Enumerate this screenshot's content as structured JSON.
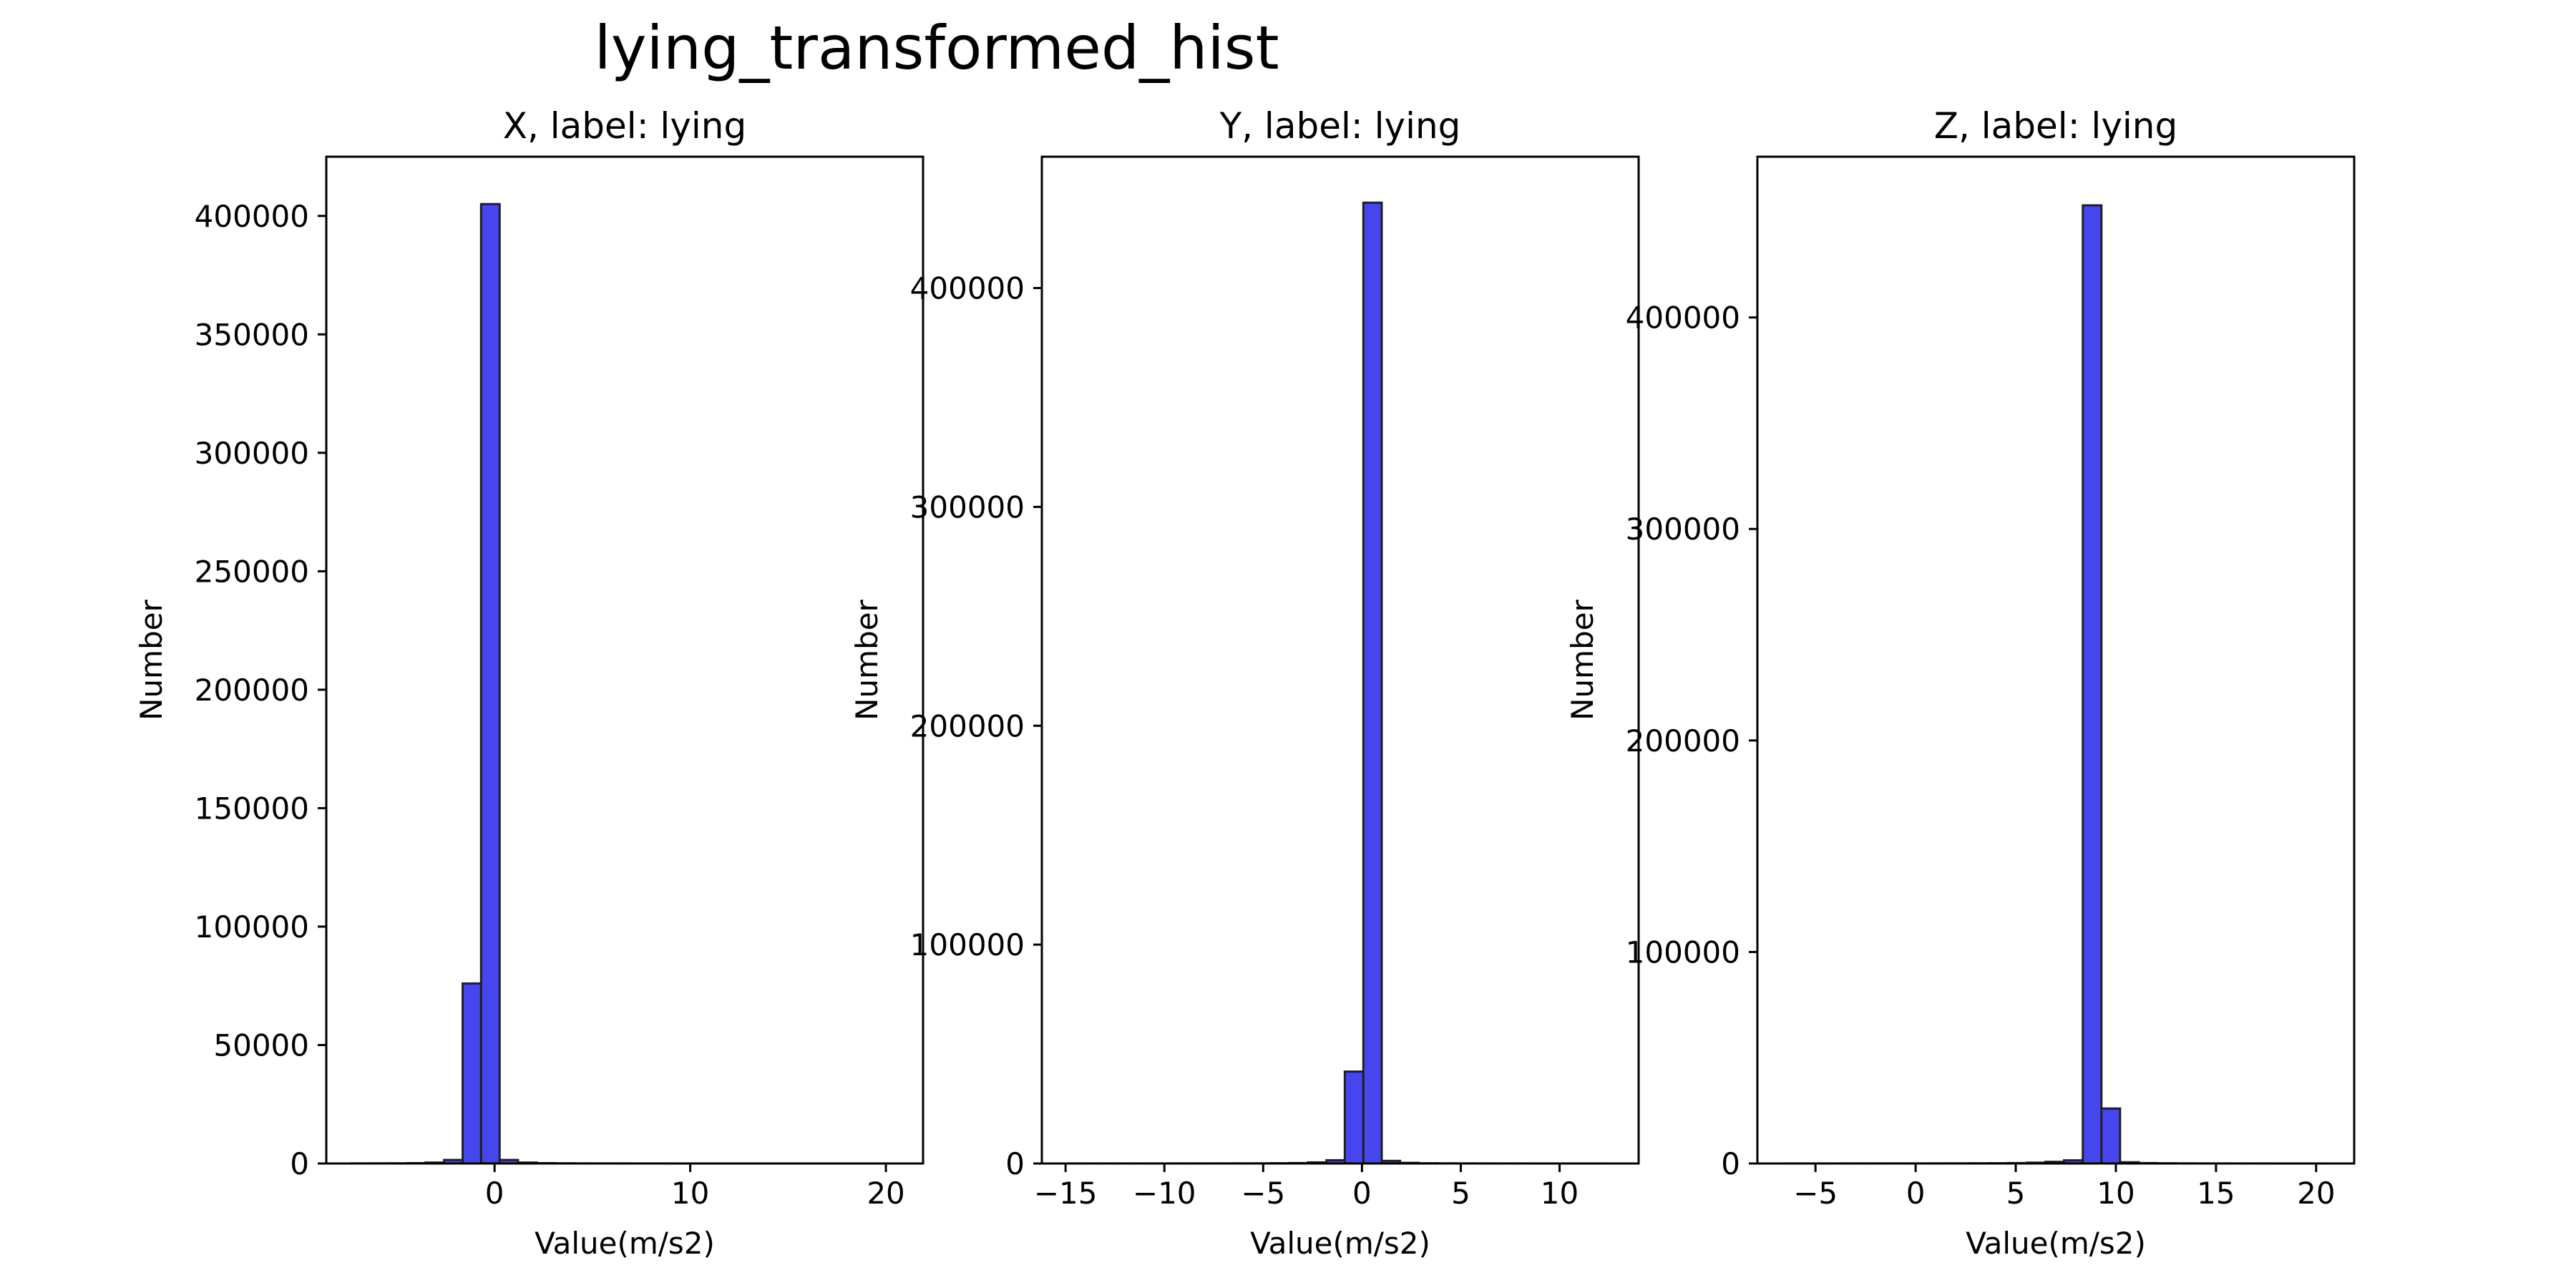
{
  "figure": {
    "title": "lying_transformed_hist"
  },
  "colors": {
    "bar_fill": "#4646ee",
    "bar_edge": "#202020",
    "axis": "#000000",
    "background": "#ffffff"
  },
  "chart_data": [
    {
      "type": "bar",
      "title": "X, label: lying",
      "xlabel": "Value(m/s2)",
      "ylabel": "Number",
      "xlim": [
        -8.6,
        21.9
      ],
      "ylim": [
        0,
        425000
      ],
      "xticks": [
        0,
        10,
        20
      ],
      "xtick_labels": [
        "0",
        "10",
        "20"
      ],
      "yticks": [
        0,
        50000,
        100000,
        150000,
        200000,
        250000,
        300000,
        350000,
        400000
      ],
      "ytick_labels": [
        "0",
        "50000",
        "100000",
        "150000",
        "200000",
        "250000",
        "300000",
        "350000",
        "400000"
      ],
      "grid": false,
      "bin_edges": [
        -7.3,
        -6.36,
        -5.41,
        -4.47,
        -3.52,
        -2.58,
        -1.63,
        -0.69,
        0.26,
        1.2,
        2.15,
        3.09,
        4.04,
        4.98,
        5.93,
        6.87,
        7.82,
        8.76,
        9.71,
        10.65,
        11.6,
        12.54,
        13.49,
        14.43,
        15.38,
        16.32,
        17.27,
        18.21,
        19.16,
        20.1
      ],
      "values": [
        50,
        60,
        80,
        150,
        400,
        1500,
        76000,
        405000,
        1500,
        400,
        150,
        80,
        50,
        40,
        30,
        20,
        20,
        10,
        10,
        10,
        10,
        10,
        10,
        10,
        10,
        10,
        10,
        10,
        10
      ]
    },
    {
      "type": "bar",
      "title": "Y, label: lying",
      "xlabel": "Value(m/s2)",
      "ylabel": "Number",
      "xlim": [
        -16.2,
        14.0
      ],
      "ylim": [
        0,
        460000
      ],
      "xticks": [
        -15,
        -10,
        -5,
        0,
        5,
        10
      ],
      "xtick_labels": [
        "−15",
        "−10",
        "−5",
        "0",
        "5",
        "10"
      ],
      "yticks": [
        0,
        100000,
        200000,
        300000,
        400000
      ],
      "ytick_labels": [
        "0",
        "100000",
        "200000",
        "300000",
        "400000"
      ],
      "grid": false,
      "bin_edges": [
        -14.85,
        -13.92,
        -12.99,
        -12.05,
        -11.12,
        -10.19,
        -9.26,
        -8.32,
        -7.39,
        -6.46,
        -5.53,
        -4.6,
        -3.66,
        -2.73,
        -1.8,
        -0.87,
        0.07,
        1.0,
        1.93,
        2.86,
        3.79,
        4.73,
        5.66,
        6.59,
        7.52,
        8.45,
        9.39,
        10.32,
        11.25,
        12.18
      ],
      "values": [
        20,
        20,
        20,
        20,
        20,
        30,
        30,
        40,
        50,
        60,
        80,
        120,
        200,
        500,
        1500,
        42000,
        439000,
        1200,
        300,
        120,
        80,
        50,
        30,
        20,
        20,
        10,
        10,
        10,
        10
      ]
    },
    {
      "type": "bar",
      "title": "Z, label: lying",
      "xlabel": "Value(m/s2)",
      "ylabel": "Number",
      "xlim": [
        -7.9,
        21.9
      ],
      "ylim": [
        0,
        476000
      ],
      "xticks": [
        -5,
        0,
        5,
        10,
        15,
        20
      ],
      "xtick_labels": [
        "−5",
        "0",
        "5",
        "10",
        "15",
        "20"
      ],
      "yticks": [
        0,
        100000,
        200000,
        300000,
        400000
      ],
      "ytick_labels": [
        "0",
        "100000",
        "200000",
        "300000",
        "400000"
      ],
      "grid": false,
      "bin_edges": [
        -6.58,
        -5.65,
        -4.72,
        -3.78,
        -2.85,
        -1.92,
        -0.98,
        -0.05,
        0.88,
        1.81,
        2.75,
        3.68,
        4.61,
        5.55,
        6.48,
        7.41,
        8.35,
        9.28,
        10.21,
        11.14,
        12.08,
        13.01,
        13.94,
        14.88,
        15.81,
        16.74,
        17.68,
        18.61,
        19.54,
        20.48
      ],
      "values": [
        20,
        20,
        20,
        30,
        30,
        40,
        40,
        50,
        60,
        70,
        90,
        120,
        200,
        400,
        800,
        1500,
        453000,
        26000,
        600,
        200,
        100,
        60,
        40,
        30,
        20,
        20,
        10,
        10,
        10
      ]
    }
  ]
}
